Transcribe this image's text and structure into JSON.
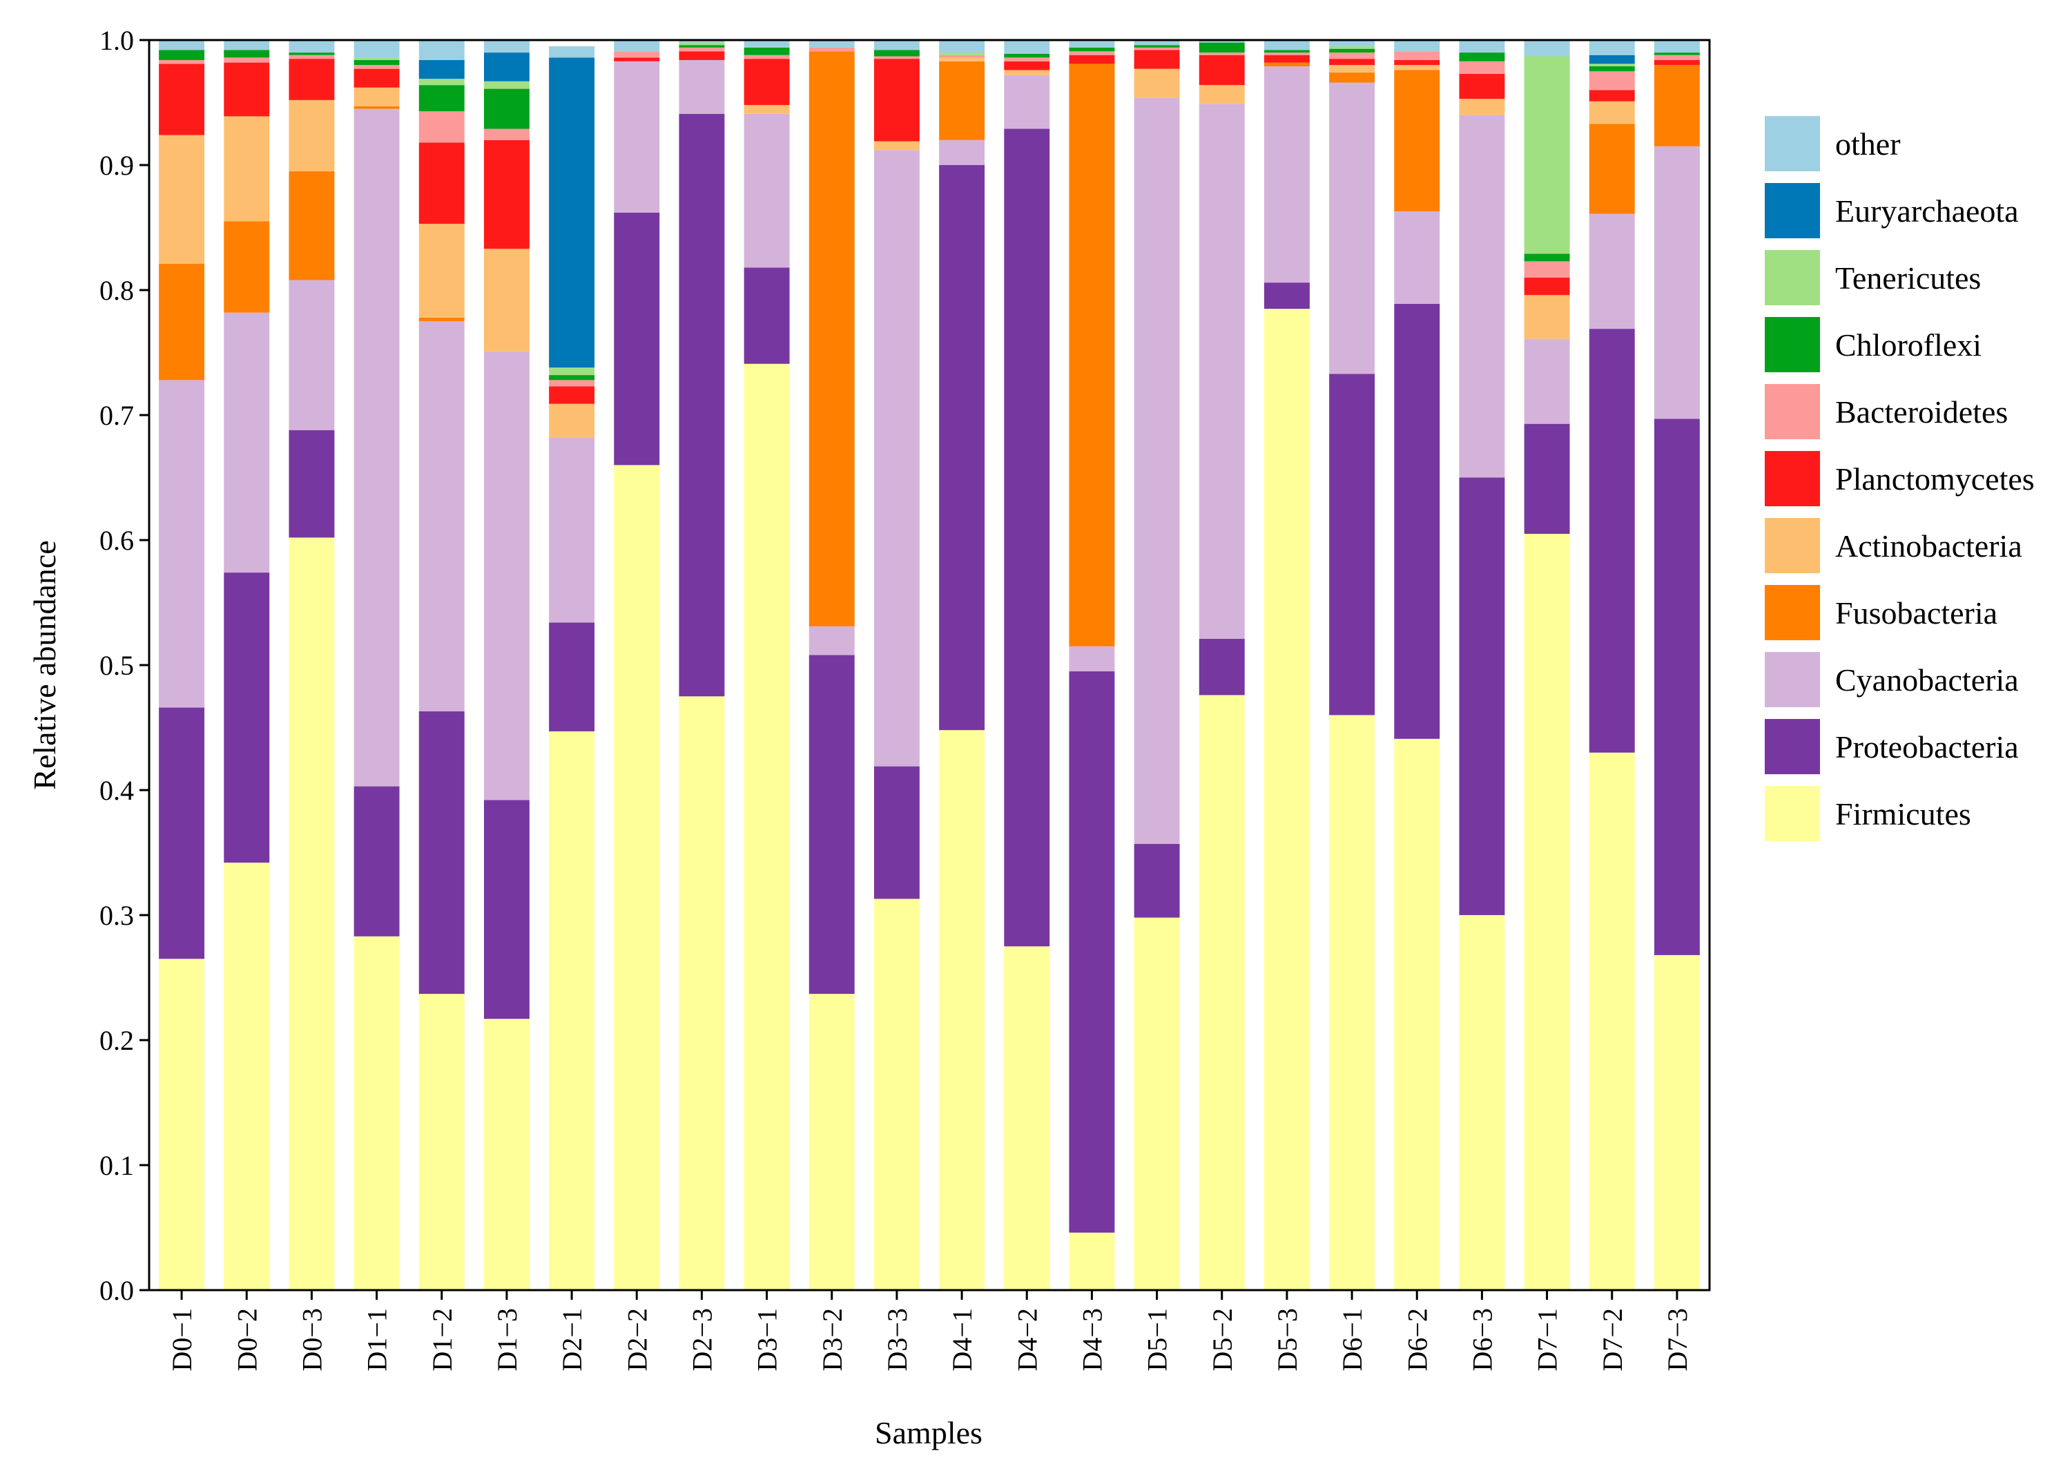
{
  "chart_data": {
    "type": "bar",
    "stacked": true,
    "xlabel": "Samples",
    "ylabel": "Relative abundance",
    "ylim": [
      0,
      1
    ],
    "yticks": [
      "0.0",
      "0.1",
      "0.2",
      "0.3",
      "0.4",
      "0.5",
      "0.6",
      "0.7",
      "0.8",
      "0.9",
      "1.0"
    ],
    "legend_position": "right",
    "categories": [
      "D0−1",
      "D0−2",
      "D0−3",
      "D1−1",
      "D1−2",
      "D1−3",
      "D2−1",
      "D2−2",
      "D2−3",
      "D3−1",
      "D3−2",
      "D3−3",
      "D4−1",
      "D4−2",
      "D4−3",
      "D5−1",
      "D5−2",
      "D5−3",
      "D6−1",
      "D6−2",
      "D6−3",
      "D7−1",
      "D7−2",
      "D7−3"
    ],
    "series": [
      {
        "name": "Firmicutes",
        "color": "#FFFF99",
        "values": [
          0.265,
          0.342,
          0.602,
          0.283,
          0.237,
          0.217,
          0.447,
          0.66,
          0.475,
          0.741,
          0.237,
          0.313,
          0.448,
          0.275,
          0.046,
          0.298,
          0.476,
          0.785,
          0.46,
          0.441,
          0.3,
          0.605,
          0.43,
          0.268
        ]
      },
      {
        "name": "Proteobacteria",
        "color": "#7737A0",
        "values": [
          0.201,
          0.232,
          0.086,
          0.12,
          0.226,
          0.175,
          0.087,
          0.202,
          0.466,
          0.077,
          0.271,
          0.106,
          0.452,
          0.654,
          0.449,
          0.059,
          0.045,
          0.021,
          0.273,
          0.348,
          0.35,
          0.088,
          0.339,
          0.429
        ]
      },
      {
        "name": "Cyanobacteria",
        "color": "#D4B3DA",
        "values": [
          0.262,
          0.208,
          0.12,
          0.542,
          0.312,
          0.359,
          0.148,
          0.121,
          0.043,
          0.123,
          0.023,
          0.493,
          0.02,
          0.043,
          0.02,
          0.597,
          0.428,
          0.173,
          0.233,
          0.074,
          0.29,
          0.068,
          0.092,
          0.218
        ]
      },
      {
        "name": "Fusobacteria",
        "color": "#FF7F00",
        "values": [
          0.093,
          0.073,
          0.087,
          0.002,
          0.003,
          0.0,
          0.0,
          0.0,
          0.0,
          0.0,
          0.46,
          0.0,
          0.063,
          0.0,
          0.466,
          0.0,
          0.0,
          0.003,
          0.008,
          0.113,
          0.0,
          0.0,
          0.072,
          0.065
        ]
      },
      {
        "name": "Actinobacteria",
        "color": "#FDBF6F",
        "values": [
          0.103,
          0.084,
          0.057,
          0.015,
          0.075,
          0.082,
          0.027,
          0.0,
          0.0,
          0.007,
          0.0,
          0.007,
          0.003,
          0.004,
          0.0,
          0.023,
          0.015,
          0.0,
          0.006,
          0.004,
          0.013,
          0.035,
          0.018,
          0.0
        ]
      },
      {
        "name": "Planctomycetes",
        "color": "#FF1A1A",
        "values": [
          0.057,
          0.043,
          0.033,
          0.015,
          0.065,
          0.087,
          0.014,
          0.003,
          0.007,
          0.037,
          0.0,
          0.066,
          0.0,
          0.007,
          0.007,
          0.015,
          0.024,
          0.006,
          0.005,
          0.004,
          0.02,
          0.014,
          0.009,
          0.004
        ]
      },
      {
        "name": "Bacteroidetes",
        "color": "#FB9A99",
        "values": [
          0.003,
          0.004,
          0.003,
          0.003,
          0.025,
          0.009,
          0.005,
          0.005,
          0.003,
          0.003,
          0.003,
          0.002,
          0.002,
          0.003,
          0.003,
          0.002,
          0.002,
          0.002,
          0.005,
          0.007,
          0.01,
          0.013,
          0.015,
          0.004
        ]
      },
      {
        "name": "Chloroflexi",
        "color": "#00A21A",
        "values": [
          0.008,
          0.006,
          0.002,
          0.004,
          0.021,
          0.032,
          0.004,
          0.0,
          0.002,
          0.006,
          0.0,
          0.005,
          0.0,
          0.003,
          0.003,
          0.002,
          0.008,
          0.002,
          0.003,
          0.0,
          0.007,
          0.006,
          0.004,
          0.002
        ]
      },
      {
        "name": "Tenericutes",
        "color": "#A1DF83",
        "values": [
          0.0,
          0.0,
          0.0,
          0.002,
          0.005,
          0.006,
          0.006,
          0.0,
          0.002,
          0.0,
          0.0,
          0.0,
          0.002,
          0.0,
          0.0,
          0.0,
          0.0,
          0.0,
          0.002,
          0.0,
          0.0,
          0.158,
          0.002,
          0.0
        ]
      },
      {
        "name": "Euryarchaeota",
        "color": "#0077B6",
        "values": [
          0.0,
          0.0,
          0.0,
          0.0,
          0.015,
          0.023,
          0.248,
          0.0,
          0.0,
          0.0,
          0.0,
          0.0,
          0.0,
          0.0,
          0.0,
          0.0,
          0.0,
          0.0,
          0.0,
          0.0,
          0.0,
          0.0,
          0.007,
          0.0
        ]
      },
      {
        "name": "other",
        "color": "#9DD0E3",
        "values": [
          0.008,
          0.008,
          0.01,
          0.014,
          0.016,
          0.01,
          0.009,
          0.009,
          0.002,
          0.006,
          0.006,
          0.008,
          0.01,
          0.011,
          0.005,
          0.004,
          0.003,
          0.008,
          0.005,
          0.009,
          0.01,
          0.013,
          0.012,
          0.01
        ]
      }
    ],
    "legend_order": [
      "other",
      "Euryarchaeota",
      "Tenericutes",
      "Chloroflexi",
      "Bacteroidetes",
      "Planctomycetes",
      "Actinobacteria",
      "Fusobacteria",
      "Cyanobacteria",
      "Proteobacteria",
      "Firmicutes"
    ]
  }
}
